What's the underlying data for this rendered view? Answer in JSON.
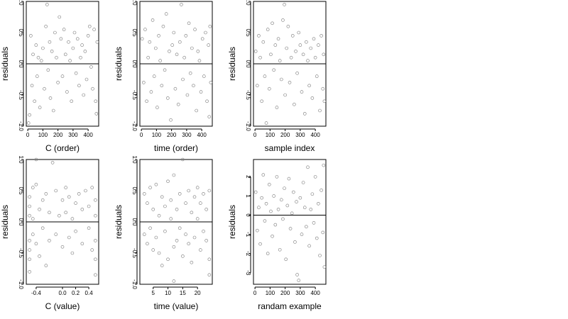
{
  "chart_data": [
    {
      "type": "scatter",
      "xlabel": "C (order)",
      "ylabel": "residuals",
      "xlim": [
        -10,
        470
      ],
      "ylim": [
        -1.0,
        1.0
      ],
      "xticks": [
        0,
        100,
        200,
        300,
        400
      ],
      "xtick_labels": [
        "0",
        "100",
        "200",
        "300",
        "400"
      ],
      "yticks": [
        -1.0,
        -0.5,
        0.0,
        0.5,
        1.0
      ],
      "ytick_labels": [
        "-1.0",
        "-0.5",
        "0.0",
        "0.5",
        "1.0"
      ],
      "ref_line_y": 0,
      "x": [
        5,
        12,
        20,
        28,
        35,
        45,
        55,
        62,
        70,
        80,
        90,
        100,
        110,
        120,
        128,
        135,
        145,
        150,
        160,
        170,
        180,
        190,
        200,
        210,
        220,
        230,
        240,
        250,
        260,
        270,
        280,
        290,
        300,
        310,
        320,
        330,
        340,
        350,
        360,
        370,
        380,
        390,
        400,
        410,
        420,
        430,
        440,
        450,
        455,
        460
      ],
      "y": [
        -0.95,
        -0.82,
        0.45,
        -0.35,
        0.15,
        -0.6,
        0.3,
        -0.2,
        0.1,
        -0.7,
        0.05,
        0.25,
        -0.4,
        0.6,
        0.95,
        -0.1,
        0.35,
        -0.55,
        0.2,
        -0.75,
        0.5,
        0.1,
        -0.3,
        0.75,
        0.4,
        -0.2,
        0.55,
        0.15,
        -0.45,
        0.35,
        0.05,
        -0.6,
        0.25,
        0.5,
        -0.15,
        0.4,
        -0.35,
        0.1,
        0.3,
        -0.5,
        0.2,
        -0.25,
        0.45,
        0.6,
        -0.05,
        -0.4,
        0.55,
        -0.6,
        -0.8,
        0.35
      ]
    },
    {
      "type": "scatter",
      "xlabel": "time (order)",
      "ylabel": "residuals",
      "xlim": [
        -10,
        470
      ],
      "ylim": [
        -1.0,
        1.0
      ],
      "xticks": [
        0,
        100,
        200,
        300,
        400
      ],
      "xtick_labels": [
        "0",
        "100",
        "200",
        "300",
        "400"
      ],
      "yticks": [
        -1.0,
        -0.5,
        0.0,
        0.5,
        1.0
      ],
      "ytick_labels": [
        "-1.0",
        "-0.5",
        "0.0",
        "0.5",
        "1.0"
      ],
      "ref_line_y": 0,
      "x": [
        5,
        15,
        25,
        35,
        45,
        55,
        65,
        75,
        85,
        95,
        105,
        115,
        125,
        135,
        145,
        155,
        165,
        175,
        185,
        195,
        205,
        215,
        225,
        235,
        245,
        255,
        265,
        275,
        285,
        295,
        305,
        315,
        325,
        335,
        345,
        355,
        365,
        375,
        385,
        395,
        405,
        415,
        425,
        435,
        445,
        450,
        455,
        460
      ],
      "y": [
        0.4,
        -0.3,
        0.55,
        -0.6,
        0.1,
        0.35,
        -0.45,
        0.7,
        -0.2,
        0.25,
        -0.7,
        0.45,
        0.05,
        -0.35,
        0.6,
        -0.1,
        0.8,
        -0.55,
        0.2,
        -0.9,
        0.3,
        0.5,
        -0.4,
        0.15,
        -0.65,
        0.35,
        0.95,
        -0.25,
        0.1,
        0.45,
        -0.5,
        0.65,
        -0.15,
        0.25,
        -0.35,
        0.55,
        -0.75,
        0.2,
        0.05,
        -0.45,
        0.4,
        -0.2,
        0.5,
        -0.6,
        0.3,
        -0.85,
        0.6,
        -0.3
      ]
    },
    {
      "type": "scatter",
      "xlabel": "sample index",
      "ylabel": "residuals",
      "xlim": [
        -10,
        470
      ],
      "ylim": [
        -1.0,
        1.0
      ],
      "xticks": [
        0,
        100,
        200,
        300,
        400
      ],
      "xtick_labels": [
        "0",
        "100",
        "200",
        "300",
        "400"
      ],
      "yticks": [
        -1.0,
        -0.5,
        0.0,
        0.5,
        1.0
      ],
      "ytick_labels": [
        "-1.0",
        "-0.5",
        "0.0",
        "0.5",
        "1.0"
      ],
      "ref_line_y": 0,
      "x": [
        5,
        15,
        25,
        35,
        45,
        55,
        65,
        75,
        85,
        95,
        105,
        115,
        125,
        135,
        145,
        155,
        165,
        175,
        185,
        195,
        200,
        210,
        220,
        230,
        240,
        250,
        260,
        270,
        280,
        290,
        300,
        310,
        320,
        330,
        340,
        350,
        360,
        370,
        380,
        390,
        400,
        410,
        420,
        430,
        440,
        450,
        455,
        460
      ],
      "y": [
        0.2,
        -0.35,
        0.45,
        0.1,
        -0.6,
        0.35,
        -0.2,
        -0.95,
        0.55,
        -0.4,
        0.15,
        0.65,
        -0.1,
        0.3,
        -0.7,
        0.4,
        0.05,
        -0.25,
        0.7,
        0.95,
        -0.5,
        0.25,
        0.6,
        -0.3,
        0.1,
        0.45,
        -0.65,
        0.2,
        -0.15,
        0.5,
        0.3,
        -0.45,
        0.15,
        -0.8,
        0.35,
        0.05,
        -0.35,
        0.25,
        -0.55,
        0.4,
        0.1,
        -0.2,
        0.3,
        -0.75,
        0.45,
        -0.4,
        0.15,
        -0.6
      ]
    },
    {
      "type": "scatter",
      "xlabel": "C (value)",
      "ylabel": "residuals",
      "xlim": [
        -0.55,
        0.55
      ],
      "ylim": [
        -1.0,
        1.0
      ],
      "xticks": [
        -0.4,
        0.0,
        0.2,
        0.4
      ],
      "xtick_labels": [
        "-0.4",
        "0.0",
        "0.2",
        "0.4"
      ],
      "yticks": [
        -1.0,
        -0.5,
        0.0,
        0.5,
        1.0
      ],
      "ytick_labels": [
        "-1.0",
        "-0.5",
        "0.0",
        "0.5",
        "1.0"
      ],
      "ref_line_y": 0,
      "x": [
        -0.5,
        -0.5,
        -0.5,
        -0.5,
        -0.5,
        -0.5,
        -0.5,
        -0.45,
        -0.45,
        -0.45,
        -0.4,
        -0.4,
        -0.4,
        -0.35,
        -0.35,
        -0.3,
        -0.3,
        -0.25,
        -0.25,
        -0.2,
        -0.2,
        -0.15,
        -0.1,
        -0.1,
        -0.05,
        0.0,
        0.0,
        0.05,
        0.05,
        0.1,
        0.1,
        0.15,
        0.15,
        0.2,
        0.2,
        0.25,
        0.3,
        0.3,
        0.35,
        0.4,
        0.4,
        0.45,
        0.45,
        0.5,
        0.5,
        0.5,
        0.5,
        0.5
      ],
      "y": [
        0.4,
        -0.3,
        -0.6,
        0.1,
        -0.8,
        0.25,
        -0.45,
        0.55,
        -0.2,
        0.05,
        0.6,
        -0.35,
        1.0,
        0.2,
        -0.55,
        0.35,
        -0.1,
        0.45,
        -0.7,
        0.15,
        -0.3,
        0.95,
        0.5,
        -0.2,
        0.1,
        0.35,
        -0.4,
        0.55,
        0.15,
        -0.25,
        0.4,
        0.05,
        -0.5,
        0.3,
        -0.15,
        0.45,
        -0.35,
        0.2,
        0.5,
        -0.1,
        0.25,
        0.55,
        -0.45,
        -0.3,
        0.35,
        -0.6,
        -0.85,
        0.1
      ]
    },
    {
      "type": "scatter",
      "xlabel": "time (value)",
      "ylabel": "residuals",
      "xlim": [
        0.5,
        25
      ],
      "ylim": [
        -1.0,
        1.0
      ],
      "xticks": [
        5,
        10,
        15,
        20
      ],
      "xtick_labels": [
        "5",
        "10",
        "15",
        "20"
      ],
      "yticks": [
        -1.0,
        -0.5,
        0.0,
        0.5,
        1.0
      ],
      "ytick_labels": [
        "-1.0",
        "-0.5",
        "0.0",
        "0.5",
        "1.0"
      ],
      "ref_line_y": 0,
      "x": [
        2,
        2,
        3,
        3,
        4,
        4,
        5,
        5,
        6,
        6,
        7,
        7,
        8,
        8,
        9,
        9,
        10,
        10,
        11,
        11,
        12,
        12,
        12,
        13,
        13,
        14,
        14,
        15,
        15,
        16,
        16,
        17,
        17,
        18,
        18,
        19,
        19,
        20,
        20,
        21,
        21,
        22,
        22,
        23,
        23,
        24,
        24,
        24
      ],
      "y": [
        0.45,
        -0.2,
        0.3,
        -0.35,
        0.55,
        -0.1,
        0.2,
        -0.45,
        0.6,
        -0.25,
        0.1,
        -0.5,
        0.4,
        -0.7,
        0.25,
        -0.15,
        0.65,
        -0.6,
        0.35,
        0.05,
        -0.4,
        0.75,
        -0.95,
        0.2,
        -0.3,
        0.45,
        -0.1,
        1.0,
        -0.55,
        0.3,
        -0.2,
        0.5,
        -0.35,
        0.15,
        -0.65,
        0.4,
        -0.25,
        0.55,
        0.05,
        -0.45,
        0.3,
        -0.15,
        0.45,
        -0.3,
        0.2,
        -0.6,
        -0.85,
        0.5
      ]
    },
    {
      "type": "scatter",
      "xlabel": "randam example",
      "ylabel": "residuals",
      "xlim": [
        -10,
        470
      ],
      "ylim": [
        -3.6,
        2.9
      ],
      "xticks": [
        0,
        100,
        200,
        300,
        400
      ],
      "xtick_labels": [
        "0",
        "100",
        "200",
        "300",
        "400"
      ],
      "yticks": [
        -3,
        -2,
        -1,
        0,
        1,
        2
      ],
      "ytick_labels": [
        "-3",
        "-2",
        "-1",
        "0",
        "1",
        "2"
      ],
      "ref_line_y": 0,
      "x": [
        5,
        15,
        25,
        35,
        45,
        55,
        65,
        75,
        85,
        95,
        105,
        115,
        125,
        135,
        145,
        155,
        165,
        175,
        185,
        195,
        205,
        215,
        225,
        235,
        245,
        255,
        265,
        275,
        280,
        290,
        300,
        310,
        320,
        330,
        340,
        350,
        360,
        370,
        380,
        390,
        400,
        410,
        420,
        430,
        440,
        450,
        455,
        460
      ],
      "y": [
        1.2,
        -0.8,
        0.4,
        -1.5,
        0.9,
        2.1,
        -0.3,
        0.6,
        -2.0,
        1.6,
        0.2,
        -1.1,
        1.0,
        -0.5,
        2.0,
        0.3,
        -1.8,
        0.8,
        -0.2,
        1.4,
        -2.3,
        0.5,
        1.9,
        -0.7,
        0.1,
        1.2,
        -1.4,
        0.7,
        -3.1,
        -3.4,
        0.9,
        -1.0,
        1.7,
        0.4,
        -0.6,
        2.5,
        -1.6,
        0.3,
        1.1,
        -0.4,
        2.0,
        -1.2,
        0.6,
        -2.1,
        1.3,
        -0.9,
        2.6,
        -2.7
      ]
    }
  ]
}
